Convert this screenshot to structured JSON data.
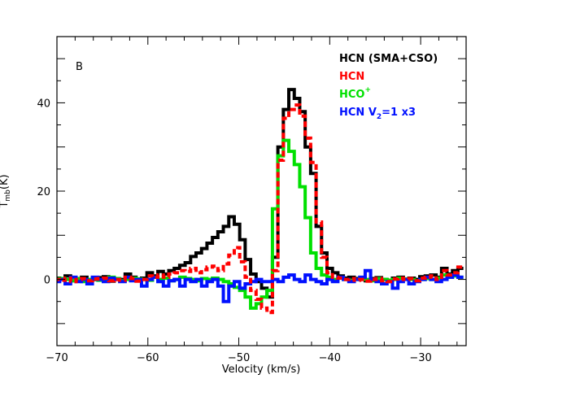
{
  "chart_data": {
    "type": "line",
    "panel_label": "B",
    "xlabel": "Velocity (km/s)",
    "ylabel": {
      "main": "T",
      "sub": "mb",
      "tail": "(K)"
    },
    "xlim": [
      -70,
      -25
    ],
    "ylim": [
      -15,
      55
    ],
    "xticks": [
      -70,
      -60,
      -50,
      -40,
      -30
    ],
    "yticks": [
      0,
      20,
      40
    ],
    "grid": false,
    "legend_position": "top-right",
    "series": [
      {
        "name": "HCN (SMA+CSO)",
        "legend": {
          "main": "HCN (SMA+CSO)",
          "sub": "",
          "sup": "",
          "tail": ""
        },
        "color": "#000000",
        "dash": "solid",
        "x": [
          -70,
          -69.4,
          -68.8,
          -68.2,
          -67.6,
          -67.0,
          -66.4,
          -65.8,
          -65.2,
          -64.6,
          -64.0,
          -63.4,
          -62.8,
          -62.2,
          -61.6,
          -61.0,
          -60.4,
          -59.8,
          -59.2,
          -58.6,
          -58.0,
          -57.4,
          -56.8,
          -56.2,
          -55.6,
          -55.0,
          -54.4,
          -53.8,
          -53.2,
          -52.6,
          -52.0,
          -51.4,
          -50.8,
          -50.2,
          -49.6,
          -49.0,
          -48.4,
          -47.8,
          -47.2,
          -46.6,
          -46.0,
          -45.4,
          -44.8,
          -44.2,
          -43.6,
          -43.0,
          -42.4,
          -41.8,
          -41.2,
          -40.6,
          -40.0,
          -39.4,
          -38.8,
          -38.2,
          -37.6,
          -37.0,
          -36.4,
          -35.8,
          -35.2,
          -34.6,
          -34.0,
          -33.4,
          -32.8,
          -32.2,
          -31.6,
          -31.0,
          -30.4,
          -29.8,
          -29.2,
          -28.6,
          -28.0,
          -27.4,
          -26.8,
          -26.2,
          -25.6
        ],
        "y": [
          0.3,
          0.2,
          0.8,
          -0.3,
          0.1,
          0.5,
          -0.2,
          0.0,
          0.4,
          0.6,
          -0.4,
          0.2,
          0.0,
          1.2,
          0.5,
          -0.2,
          0.3,
          1.5,
          0.8,
          1.8,
          1.2,
          2.0,
          2.5,
          3.2,
          3.8,
          5.2,
          6.0,
          7.0,
          8.2,
          9.5,
          10.8,
          12.0,
          14.2,
          12.5,
          9.0,
          4.5,
          1.2,
          -0.5,
          -2.0,
          -4.0,
          5.0,
          30.0,
          38.5,
          43.0,
          41.0,
          38.0,
          30.0,
          24.0,
          12.0,
          6.0,
          2.5,
          1.5,
          0.8,
          0.3,
          0.5,
          0.2,
          0.0,
          -0.3,
          0.2,
          0.4,
          0.0,
          -0.2,
          0.3,
          0.5,
          0.1,
          0.3,
          0.0,
          0.6,
          0.8,
          1.0,
          0.5,
          2.5,
          1.2,
          2.0,
          2.5
        ]
      },
      {
        "name": "HCN",
        "legend": {
          "main": "HCN",
          "sub": "",
          "sup": "",
          "tail": ""
        },
        "color": "#ff0000",
        "dash": "dashed",
        "x": [
          -70,
          -69.4,
          -68.8,
          -68.2,
          -67.6,
          -67.0,
          -66.4,
          -65.8,
          -65.2,
          -64.6,
          -64.0,
          -63.4,
          -62.8,
          -62.2,
          -61.6,
          -61.0,
          -60.4,
          -59.8,
          -59.2,
          -58.6,
          -58.0,
          -57.4,
          -56.8,
          -56.2,
          -55.6,
          -55.0,
          -54.4,
          -53.8,
          -53.2,
          -52.6,
          -52.0,
          -51.4,
          -50.8,
          -50.2,
          -49.6,
          -49.0,
          -48.4,
          -47.8,
          -47.2,
          -46.6,
          -46.0,
          -45.4,
          -44.8,
          -44.2,
          -43.6,
          -43.0,
          -42.4,
          -41.8,
          -41.2,
          -40.6,
          -40.0,
          -39.4,
          -38.8,
          -38.2,
          -37.6,
          -37.0,
          -36.4,
          -35.8,
          -35.2,
          -34.6,
          -34.0,
          -33.4,
          -32.8,
          -32.2,
          -31.6,
          -31.0,
          -30.4,
          -29.8,
          -29.2,
          -28.6,
          -28.0,
          -27.4,
          -26.8,
          -26.2,
          -25.6
        ],
        "y": [
          0.0,
          -0.2,
          0.3,
          -0.5,
          0.0,
          0.2,
          -0.3,
          0.1,
          0.2,
          0.3,
          -0.3,
          0.0,
          -0.2,
          0.5,
          0.2,
          -0.4,
          0.0,
          0.8,
          0.5,
          1.0,
          0.5,
          1.2,
          1.5,
          2.0,
          1.8,
          2.5,
          1.5,
          2.2,
          2.8,
          3.0,
          2.0,
          3.5,
          5.5,
          7.2,
          4.0,
          0.5,
          -2.5,
          -4.5,
          -6.5,
          -7.5,
          2.0,
          27.0,
          36.5,
          38.5,
          39.5,
          37.0,
          32.0,
          26.5,
          13.0,
          5.0,
          1.5,
          0.5,
          0.3,
          0.0,
          0.2,
          -0.2,
          0.0,
          -0.4,
          0.0,
          0.2,
          -0.3,
          -0.5,
          0.1,
          0.3,
          0.0,
          0.2,
          -0.3,
          0.3,
          0.5,
          0.8,
          0.0,
          2.0,
          1.0,
          1.5,
          2.8
        ]
      },
      {
        "name": "HCO+",
        "legend": {
          "main": "HCO",
          "sub": "",
          "sup": "+",
          "tail": ""
        },
        "color": "#00e000",
        "dash": "solid",
        "x": [
          -70,
          -69.4,
          -68.8,
          -68.2,
          -67.6,
          -67.0,
          -66.4,
          -65.8,
          -65.2,
          -64.6,
          -64.0,
          -63.4,
          -62.8,
          -62.2,
          -61.6,
          -61.0,
          -60.4,
          -59.8,
          -59.2,
          -58.6,
          -58.0,
          -57.4,
          -56.8,
          -56.2,
          -55.6,
          -55.0,
          -54.4,
          -53.8,
          -53.2,
          -52.6,
          -52.0,
          -51.4,
          -50.8,
          -50.2,
          -49.6,
          -49.0,
          -48.4,
          -47.8,
          -47.2,
          -46.6,
          -46.0,
          -45.4,
          -44.8,
          -44.2,
          -43.6,
          -43.0,
          -42.4,
          -41.8,
          -41.2,
          -40.6,
          -40.0,
          -39.4,
          -38.8,
          -38.2,
          -37.6,
          -37.0,
          -36.4,
          -35.8,
          -35.2,
          -34.6,
          -34.0,
          -33.4,
          -32.8,
          -32.2,
          -31.6,
          -31.0,
          -30.4,
          -29.8,
          -29.2,
          -28.6,
          -28.0,
          -27.4,
          -26.8,
          -26.2,
          -25.6
        ],
        "y": [
          0.0,
          0.2,
          0.0,
          -0.3,
          0.2,
          -0.5,
          0.0,
          0.3,
          -0.2,
          0.0,
          0.5,
          0.2,
          -0.3,
          0.0,
          0.3,
          0.1,
          0.0,
          -0.2,
          0.5,
          0.0,
          0.3,
          -0.3,
          0.0,
          0.5,
          0.2,
          0.0,
          -0.3,
          0.2,
          0.0,
          0.3,
          0.0,
          -0.5,
          -1.0,
          -1.8,
          -2.5,
          -4.0,
          -6.5,
          -5.5,
          -4.0,
          -2.5,
          16.0,
          28.0,
          31.5,
          29.0,
          26.0,
          21.0,
          14.0,
          6.0,
          2.5,
          1.0,
          0.5,
          0.0,
          0.3,
          0.0,
          -0.2,
          0.0,
          0.3,
          0.0,
          -0.3,
          0.2,
          0.0,
          -0.2,
          0.0,
          0.3,
          0.1,
          0.0,
          -0.3,
          0.0,
          0.2,
          0.0,
          0.3,
          1.0,
          0.5,
          0.8,
          0.5
        ]
      },
      {
        "name": "HCN V2=1 x3",
        "legend": {
          "main": "HCN V",
          "sub": "2",
          "sup": "",
          "tail": "=1 x3"
        },
        "color": "#0010ff",
        "dash": "solid",
        "x": [
          -70,
          -69.4,
          -68.8,
          -68.2,
          -67.6,
          -67.0,
          -66.4,
          -65.8,
          -65.2,
          -64.6,
          -64.0,
          -63.4,
          -62.8,
          -62.2,
          -61.6,
          -61.0,
          -60.4,
          -59.8,
          -59.2,
          -58.6,
          -58.0,
          -57.4,
          -56.8,
          -56.2,
          -55.6,
          -55.0,
          -54.4,
          -53.8,
          -53.2,
          -52.6,
          -52.0,
          -51.4,
          -50.8,
          -50.2,
          -49.6,
          -49.0,
          -48.4,
          -47.8,
          -47.2,
          -46.6,
          -46.0,
          -45.4,
          -44.8,
          -44.2,
          -43.6,
          -43.0,
          -42.4,
          -41.8,
          -41.2,
          -40.6,
          -40.0,
          -39.4,
          -38.8,
          -38.2,
          -37.6,
          -37.0,
          -36.4,
          -35.8,
          -35.2,
          -34.6,
          -34.0,
          -33.4,
          -32.8,
          -32.2,
          -31.6,
          -31.0,
          -30.4,
          -29.8,
          -29.2,
          -28.6,
          -28.0,
          -27.4,
          -26.8,
          -26.2,
          -25.6
        ],
        "y": [
          -0.5,
          0.0,
          -1.0,
          0.5,
          -0.5,
          0.0,
          -1.0,
          0.5,
          0.0,
          -0.5,
          0.3,
          0.0,
          -0.5,
          0.5,
          -0.3,
          0.0,
          -1.5,
          0.0,
          0.5,
          -0.5,
          -1.5,
          -0.3,
          0.0,
          -1.5,
          0.0,
          -0.5,
          0.0,
          -1.5,
          -0.5,
          0.0,
          -1.5,
          -5.0,
          -1.5,
          -0.5,
          -2.0,
          -1.0,
          -0.5,
          0.0,
          -0.5,
          -0.5,
          0.0,
          -0.5,
          0.5,
          1.0,
          0.0,
          -0.5,
          1.0,
          0.0,
          -0.5,
          -1.0,
          0.0,
          -0.5,
          0.5,
          0.0,
          -0.5,
          0.0,
          0.5,
          2.0,
          0.0,
          -0.5,
          -1.0,
          -0.5,
          -2.0,
          -0.5,
          0.0,
          -1.0,
          -0.5,
          0.0,
          0.5,
          0.0,
          -0.5,
          0.0,
          0.5,
          1.0,
          0.5
        ]
      }
    ]
  }
}
